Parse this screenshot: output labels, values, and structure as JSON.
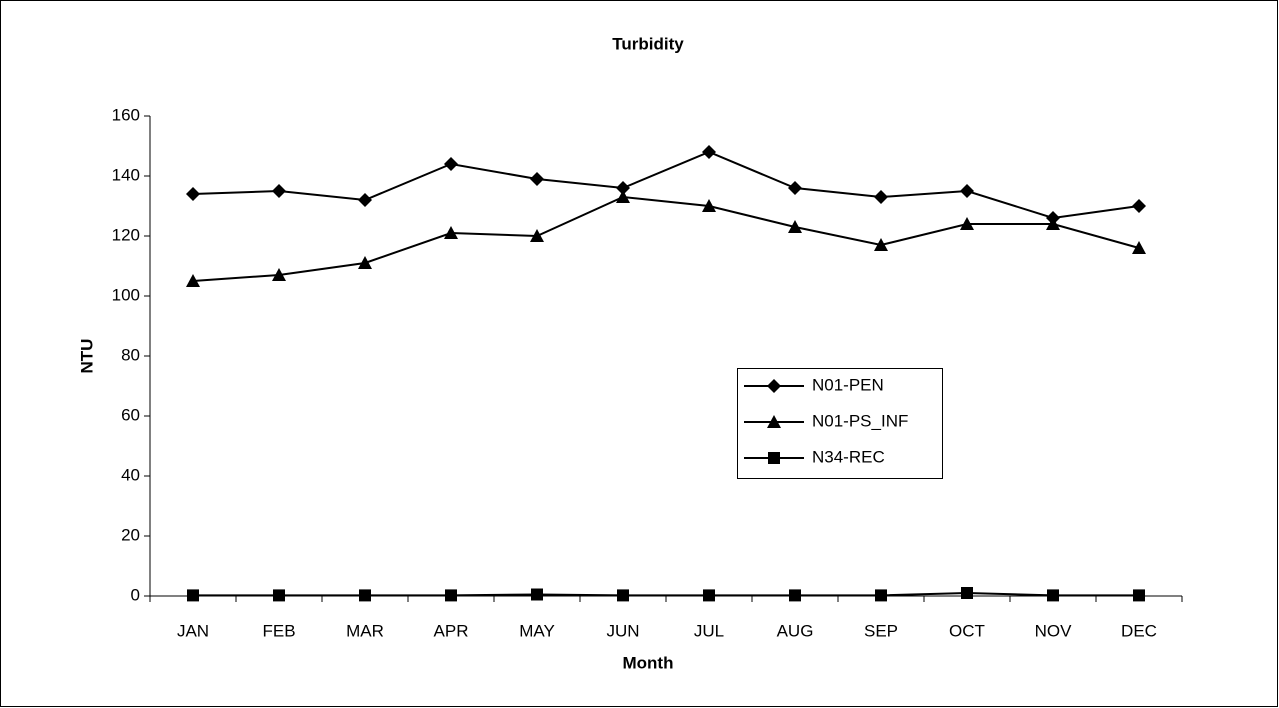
{
  "chart_data": {
    "type": "line",
    "title": "Turbidity",
    "x_label": "Month",
    "y_label": "NTU",
    "categories": [
      "JAN",
      "FEB",
      "MAR",
      "APR",
      "MAY",
      "JUN",
      "JUL",
      "AUG",
      "SEP",
      "OCT",
      "NOV",
      "DEC"
    ],
    "series": [
      {
        "name": "N01-PEN",
        "color": "#000000",
        "marker": "diamond",
        "values": [
          134,
          135,
          132,
          144,
          139,
          136,
          148,
          136,
          133,
          135,
          126,
          130
        ]
      },
      {
        "name": "N01-PS_INF",
        "color": "#000000",
        "marker": "triangle",
        "values": [
          105,
          107,
          111,
          121,
          120,
          133,
          130,
          123,
          117,
          124,
          124,
          116
        ]
      },
      {
        "name": "N34-REC",
        "color": "#000000",
        "marker": "square",
        "values": [
          0.2,
          0.2,
          0.2,
          0.2,
          0.5,
          0.2,
          0.2,
          0.2,
          0.2,
          1,
          0.2,
          0.2
        ]
      }
    ],
    "ylim": [
      0,
      160
    ],
    "yticks": [
      0,
      20,
      40,
      60,
      80,
      100,
      120,
      140,
      160
    ],
    "grid": false
  }
}
